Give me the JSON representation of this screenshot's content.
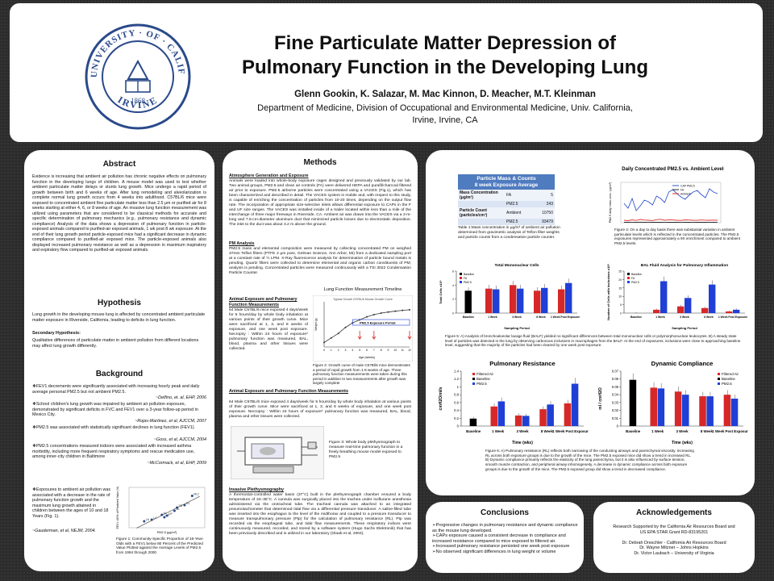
{
  "header": {
    "title_line1": "Fine Particulate Matter Depression of",
    "title_line2": "Pulmonary Function in the Developing Lung",
    "authors": "Glenn Gookin, K. Salazar, M. Mac Kinnon, D. Meacher, M.T. Kleinman",
    "affil1": "Department of Medicine, Division of Occupational and Environmental Medicine, Univ. California,",
    "affil2": "Irvine, Irvine, CA",
    "seal_top": "THE · UNIVERSITY · OF · CALIFORNIA",
    "seal_bottom": "IRVINE",
    "seal_year": "1868"
  },
  "abstract": {
    "heading": "Abstract",
    "body": "Evidence is increasing that ambient air pollution has chronic negative effects on pulmonary function in the developing lungs of children. A mouse model was used to test whether ambient particulate matter delays or stunts lung growth. Mice undergo a rapid period of growth between birth and 6 weeks of age. After lung remodeling and alveolarization is complete normal lung growth occurs from 4 weeks into adulthood. C57BL/6 mice were exposed to concentrated ambient fine particulate matter less than 2.5 μm or purified air for 8 weeks starting at either 4, 6, or 8 weeks of age. An invasive lung function measurement was utilized using parameters that are considered to be classical methods for accurate and specific determination of pulmonary mechanics (e.g., pulmonary resistance and dynamic compliance) Analysis of the data shows a depression of pulmonary function in particle-exposed animals compared to purified-air exposed animals, 1 wk post 8 wk exposure. At the end of their lung growth period particle-exposed mice had a significant decrease in dynamic compliance compared to purified-air exposed mice. The particle-exposed animals also displayed increased pulmonary resistance as well as a depression in maximum inspiratory and expiratory flow compared to purified-air exposed animals."
  },
  "hypothesis": {
    "heading": "Hypothesis",
    "body": "Lung growth in the developing mouse lung is affected by concentrated ambient particulate matter exposure in Riverside, California, leading to deficits in lung function.",
    "secondary_title": "Secondary Hypothesis:",
    "secondary_body": "Qualitative differences of particulate matter in ambient pollution from different locations may affect lung growth differently."
  },
  "background": {
    "heading": "Background",
    "items": [
      {
        "text": "❖FEV1 decrements were significantly associated with increasing hourly peak and daily average personal PM2.5 but not ambient PM2.5.",
        "cite": "~Delfino, et. al, EHP, 2006"
      },
      {
        "text": "❖School children's lung growth was impaired by ambient air pollution exposure, demonstrated by significant deficits in FVC and FEV1 over a 3-year follow-up period in Mexico City.",
        "cite": "~Rojas-Martinez, et al, AJCCM, 2007"
      },
      {
        "text": "❖PM2.5 was associated with statistically significant declines in lung function (FEV1).",
        "cite": "~Goss, et al, AJCCM, 2004"
      },
      {
        "text": "❖PM2.5 concentrations measured indoors were associated with increased asthma morbidity, including more frequent respiratory symptoms and rescue medication use, among inner-city children in Baltimore",
        "cite": "~McCormack, et al, EHP, 2009"
      }
    ],
    "last_text": "❖Exposures to ambient air pollution was associated with a decrease in the rate of pulmonary function growth and the maximum lung growth attained in children between the ages of 10 and 18 Years (Fig. 1).",
    "last_cite": "~Gauderman, et al, NEJM, 2004.",
    "fig1_caption": "Figure 1: Community-Specific Proportion of 18-Year-Olds with a FEV1 below 80 Percent of the Predicted Value Plotted against the Average Levels of PM2.5 from 1994 through 2000"
  },
  "methods": {
    "heading": "Methods",
    "gen_title": "Atmosphere Generation and Exposure",
    "gen_body": "Animals were loaded into whole-body exposure cages designed and previously validated by our lab. Two animal groups, PM2.5 and clean air controls (FA) were delivered HEPA and purafil/charcoal filtered air prior to exposure. PM2.5 airborne particles were concentrated using a VACES (Fig.1), which has been characterized and described in detail. The VACES system is mobile and, with respect to this study, is capable of enriching the concentration of particles from 10-20 times, depending on the output flow rate. The incorporation of appropriate size-selective inlets allows differential exposure to CAPs in the F and UF size ranges. The VACES was installed inside of a trailer located within less than a mile of the interchange of three major freeways in Riverside, CA. Ambient air was drawn into the VACES via a 2-m-long and 7.5-cm-diameter aluminum duct that minimized particle losses due to electrostatic deposition. The inlet to the duct was about 3.2 m above the ground.",
    "pm_title": "PM Analysis",
    "pm_body": "PM2.5 mass and elemental composition were measured by collecting concentrated PM on weighed 37mm Teflon filters (PTFE 2 μm pore, Gelman Science, Ann Arbor, MI) from a dedicated sampling port at a constant rate of ½ LPM. X-Ray fluorescence analysis for determination of particle bound metals is pending. Quartz filters were collected to determine elemental and organic carbon constituents of PM; analysis is pending. Concentrated particles were measured continuously with a TSI 3022 Condensation Particle Counter.",
    "animal1_title": "Animal Exposure and Pulmonary Function Measurements",
    "animal1_body": "64 Male C57BL/6 mice exposed 4 days/week for 5 hours/day by whole body inhalation at various points of their growth curve. Mice were sacrificed at 1, 3, and 8 weeks of exposure, and one week post exposure. Necropsy : Within 24 hours of exposure* pulmonary function was measured, BAL, blood, plasma and other tissues were collected.",
    "timeline_title": "Lung Function Measurement Timeline",
    "timeline_inner": "Typical Growth C57BL/6 Mouse Growth Curve",
    "timeline_period": "PM2.5 Exposure Period",
    "fig2_caption": "Figure 2: Growth curve of male C57Bl/6 mice demonstrates a period of rapid growth from 1-8 weeks of age. Three pulmonary function measurements were taken during this period in addition to two measurements after growth was largely complete",
    "animal2_title": "Animal Exposure and Pulmonary Function Measurements",
    "animal2_body": "64 Male C57BL/6 mice exposed 4 days/week for 5 hours/day by whole body inhalation at various points of their growth curve. Mice were sacrificed at 1, 3, and 8 weeks of exposure, and one week post exposure. Necropsy : Within 24 hours of exposure* pulmonary function was measured, BAL, blood, plasma and other tissues were collected.",
    "fig3_caption": "Figure 3: Whole body plethysmograph to measure real-time pulmonary function in a freely breathing mouse model exposed to PM2.5",
    "pleth_title": "Invasive Plethysmography",
    "pleth_body": "A thermostat-controlled water basin (37°C) built in the plethysmograph chamber ensured a body temperature of 34–35°C. A cannula was surgically placed into the trachea under isoflurane anesthesia administered via the orotracheal tube. The tracheal cannula was attached to an integrated pneumotachometer that determined tidal flow via a differential pressure transducer. A saline-filled tube was inserted into the esophagus to the level of the midthorax and coupled to a pressure transducer to measure transpulmonary pressure (Ptp) for the calculation of pulmonary resistance (RL). Ptp was recorded via the esophageal tube, and tidal flow measurements. These respiratory indices were continuously measured, recorded, and stored by a software system (Hugo Sachs Elektronik) that has been previously described and is utilized in our laboratory (Glaab et al, 2004)."
  },
  "results": {
    "table": {
      "title": "Particle Mass & Counts",
      "subtitle": "8 week Exposure Average",
      "rows": [
        [
          "Mass Concentration (μg/m³)",
          "FA",
          "5"
        ],
        [
          "",
          "PM2.5",
          "243"
        ],
        [
          "Particle Count (particles/cm³)",
          "Ambient",
          "10750"
        ],
        [
          "",
          "PM2.5",
          "93479"
        ]
      ]
    },
    "table_caption": "Table 1:Mass concentration in μg/m³ of ambient air pollution determined from gravimetric analysis of Teflon filter weights and particle counts from a condensation particle counter.",
    "fig4_caption": "Figure 4: On a day to day basis there was substantial variation in ambient particulate levels which is reflected in the concentrated particles. The PM2.5 exposures represented approximately a 9X enrichment compared to ambient PM2.5 levels.",
    "fig5_caption": "Figure 5: A) Analysis of bronchoalveolar lavage fluid (BALF) yielded no significant differences between total mononuclear cells or polymorphonuclear leukocytes. B) A steady state level of particles was detected in the lung by observing carbonous inclusions in macrophages from the BALF. At the end of exposures, inclusions were close to approaching baseline level, suggesting that the majority of the particles had been cleared by one week post exposure.",
    "fig6_caption": "Figure 6: A) Pulmonary resistance (RL) reflects both narrowing of the conducting airways and parenchymal viscosity. Increasing RL across both exposure groups is due to the growth of the mice. The PM2.5 exposed mice did show a trend in increased RL. B) Dynamic compliance primarily reflects the elasticity of the lung parenchyma, but it is also influenced by surface tension, smooth muscle contraction, and peripheral airway inhomogeneity. A decrease in dynamic compliance across both exposure groups is due to the growth of the mice. The PM2.5 exposed group did show a trend in decreased compliance."
  },
  "conclusions": {
    "heading": "Conclusions",
    "items": [
      "➢Progressive changes in pulmonary resistance and dynamic compliance as the mouse lung developed.",
      "➢CAPs exposure caused a consistent decrease in compliance and increased resistance compared to mice exposed to filtered air.",
      "➢Increased pulmonary resistance persisted one week post exposure",
      "➢No observed significant differences in lung weight or volume"
    ]
  },
  "acknowledgements": {
    "heading": "Acknowledgements",
    "lines": [
      "Research Supported by the California Air Resources Board and",
      "US EPA STAR Grant RD-83195201",
      "",
      "Dr. Debrah Dreschler - California Air Resources Board",
      "Dr. Wayne Mitzner – Johns Hopkins",
      "Dr. Victor Laubach – University of Virginia"
    ]
  },
  "chart_data": [
    {
      "type": "scatter",
      "title": "",
      "xlabel": "PM2.5 (μg/m³)",
      "ylabel": "FEV1 <80% of Predicted Value (%)",
      "x": [
        6,
        9,
        13,
        14,
        15,
        18,
        19,
        22,
        25
      ],
      "y": [
        1.6,
        2.0,
        3.2,
        2.6,
        3.0,
        4.2,
        5.0,
        5.6,
        7.9
      ],
      "labels": [
        "LN",
        "LA",
        "AL",
        "LE",
        "UP",
        "ML",
        "SD",
        "RV",
        "ML2"
      ],
      "xlim": [
        0,
        30
      ],
      "ylim": [
        0,
        10
      ]
    },
    {
      "type": "line",
      "title": "Typical Growth C57BL/6 Mouse Growth Curve",
      "xlabel": "Age (weeks)",
      "ylabel": "Weight (g)",
      "x": [
        0,
        1,
        2,
        3,
        4,
        5,
        6,
        7,
        8,
        9,
        10,
        11,
        12
      ],
      "values": [
        3,
        6,
        9,
        13,
        16,
        18,
        20,
        21.5,
        22.5,
        23.2,
        23.8,
        24.3,
        24.7
      ],
      "ylim": [
        0,
        30
      ]
    },
    {
      "type": "line",
      "title": "Daily Concentrated PM2.5 vs. Ambient Levels",
      "ylabel": "PM2.5 daily mass conc. (μg/m³)",
      "series": [
        {
          "name": "CAP PM2.5",
          "color": "#3355cc",
          "values": [
            240,
            180,
            300,
            150,
            210,
            280,
            260,
            220,
            330,
            300,
            250,
            380,
            410,
            360,
            320,
            290,
            340,
            380,
            400,
            350,
            310,
            420,
            380,
            360
          ]
        },
        {
          "name": "FA",
          "color": "#2a2a2a",
          "values": [
            5,
            6,
            4,
            5,
            7,
            5,
            4,
            6,
            5,
            5,
            4,
            6,
            5,
            5,
            4,
            6,
            5,
            4,
            5,
            6,
            5,
            4,
            5,
            6
          ]
        },
        {
          "name": "Ambient",
          "color": "#dd3333",
          "values": [
            30,
            25,
            35,
            28,
            40,
            33,
            30,
            26,
            38,
            42,
            30,
            36,
            34,
            30,
            28,
            35,
            33,
            30,
            29,
            34,
            31,
            30,
            32,
            30
          ]
        }
      ],
      "ylim": [
        0,
        500
      ]
    },
    {
      "type": "bar",
      "title": "Total Mononuclear Cells",
      "xlabel": "Sampling Period",
      "ylabel": "Total Cells x10⁵",
      "categories": [
        "Baseline",
        "1 Week",
        "3 Week",
        "8 Week",
        "1 Week Post Exposure"
      ],
      "series": [
        {
          "name": "Baseline",
          "color": "#000000",
          "values": [
            3.2,
            null,
            null,
            null,
            null
          ]
        },
        {
          "name": "FA",
          "color": "#d62828",
          "values": [
            null,
            3.5,
            4.0,
            3.2,
            3.4
          ]
        },
        {
          "name": "PM2.5",
          "color": "#1f3fd6",
          "values": [
            null,
            3.4,
            3.5,
            3.6,
            4.3
          ]
        }
      ],
      "ylim": [
        0,
        6
      ]
    },
    {
      "type": "bar",
      "title": "BAL Fluid Analysis for Pulmonary Inflammation",
      "xlabel": "Sampling Period",
      "ylabel": "Number of Cells with Inclusions x10³",
      "categories": [
        "Baseline",
        "1 Week",
        "3 Week",
        "8 Week",
        "1 Week Post Exposure"
      ],
      "series": [
        {
          "name": "Baseline",
          "color": "#000000",
          "values": [
            0,
            null,
            null,
            null,
            null
          ]
        },
        {
          "name": "FA",
          "color": "#d62828",
          "values": [
            null,
            2,
            4,
            3,
            1
          ]
        },
        {
          "name": "PM2.5",
          "color": "#1f3fd6",
          "values": [
            null,
            19,
            9,
            17,
            2
          ]
        }
      ],
      "ylim": [
        0,
        25
      ]
    },
    {
      "type": "bar",
      "title": "Pulmonary Resistance",
      "xlabel": "Time (wks)",
      "ylabel": "cmH2O/ml/s",
      "categories": [
        "Baseline",
        "1 Week",
        "3 Week",
        "8 Week",
        "1 Week Post Exposure"
      ],
      "series": [
        {
          "name": "Filtered Air",
          "color": "#d62828",
          "values": [
            null,
            0.5,
            0.27,
            0.43,
            0.58
          ]
        },
        {
          "name": "Baseline",
          "color": "#000000",
          "values": [
            0.19,
            null,
            null,
            null,
            null
          ]
        },
        {
          "name": "PM2.5",
          "color": "#1f3fd6",
          "values": [
            null,
            0.63,
            0.26,
            0.55,
            1.08
          ]
        }
      ],
      "ylim": [
        0,
        1.4
      ]
    },
    {
      "type": "bar",
      "title": "Dynamic Compliance",
      "xlabel": "Time (wks)",
      "ylabel": "ml / cmH2O",
      "categories": [
        "Baseline",
        "1 Week",
        "3 Week",
        "8 Week",
        "1 Week Post Exposure"
      ],
      "series": [
        {
          "name": "Filtered Air",
          "color": "#d62828",
          "values": [
            null,
            0.049,
            0.044,
            0.038,
            0.04
          ]
        },
        {
          "name": "Baseline",
          "color": "#000000",
          "values": [
            0.059,
            null,
            null,
            null,
            null
          ]
        },
        {
          "name": "PM2.5",
          "color": "#1f3fd6",
          "values": [
            null,
            0.048,
            0.04,
            0.038,
            0.035
          ]
        }
      ],
      "ylim": [
        0,
        0.07
      ]
    }
  ]
}
